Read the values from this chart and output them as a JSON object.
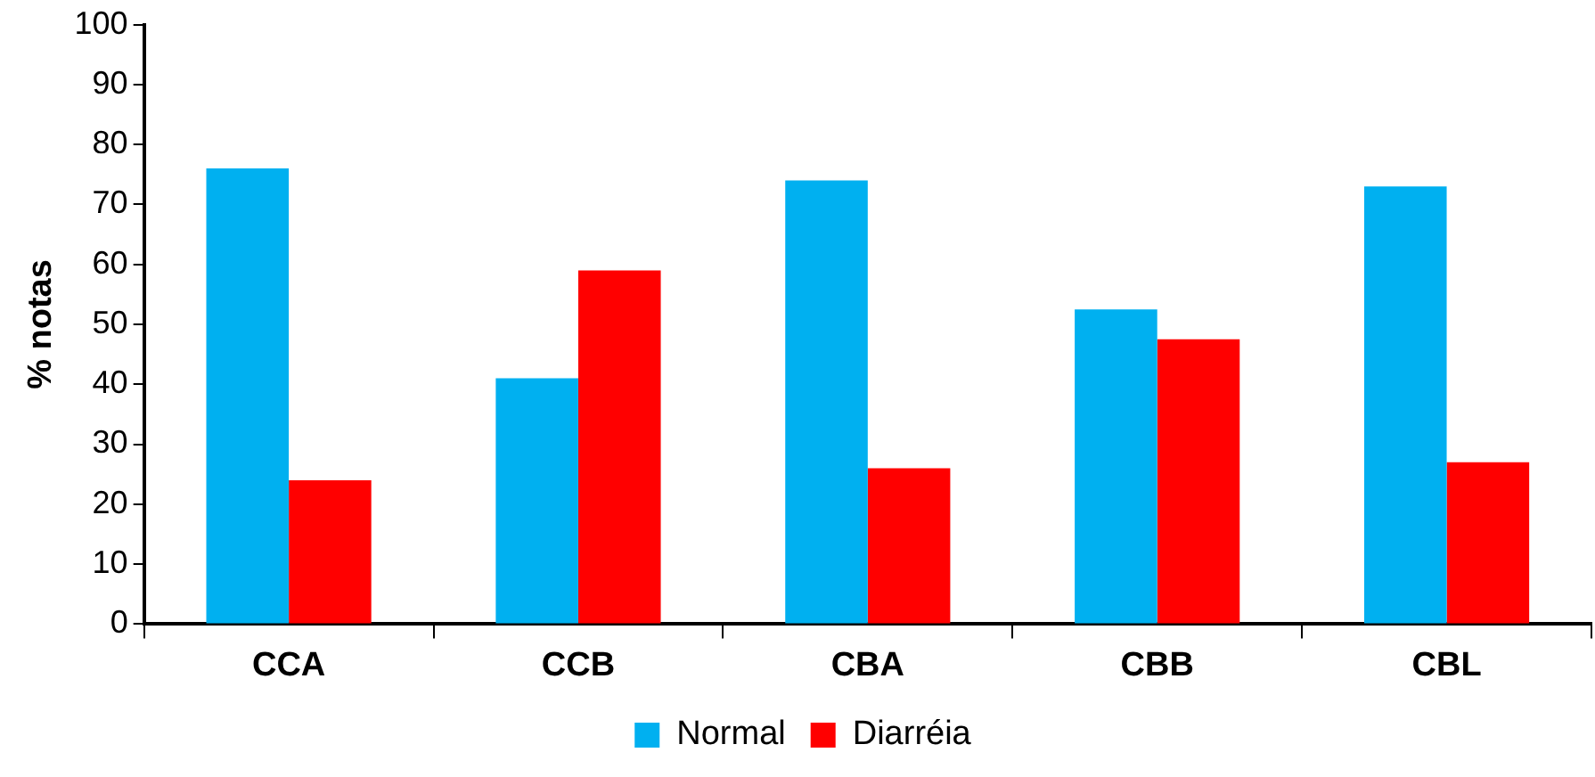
{
  "chart_data": {
    "type": "bar",
    "ylabel": "% notas",
    "categories": [
      "CCA",
      "CCB",
      "CBA",
      "CBB",
      "CBL"
    ],
    "series": [
      {
        "name": "Normal",
        "color": "#00b0f0",
        "values": [
          76,
          41,
          74,
          52.5,
          73
        ]
      },
      {
        "name": "Diarréia",
        "color": "#ff0000",
        "values": [
          24,
          59,
          26,
          47.5,
          27
        ]
      }
    ],
    "ylim": [
      0,
      100
    ],
    "yticks": [
      0,
      10,
      20,
      30,
      40,
      50,
      60,
      70,
      80,
      90,
      100
    ],
    "grid": false,
    "legend": "bottom"
  }
}
